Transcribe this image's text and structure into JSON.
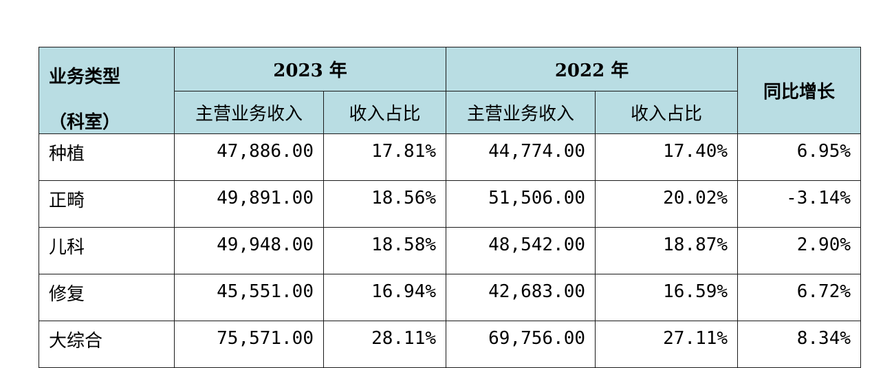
{
  "table": {
    "header": {
      "type_label": "业务类型",
      "type_sublabel": "（科室）",
      "year_2023": "2023 年",
      "year_2022": "2022 年",
      "growth": "同比增长",
      "revenue_2023": "主营业务收入",
      "share_2023": "收入占比",
      "revenue_2022": "主营业务收入",
      "share_2022": "收入占比"
    },
    "rows": [
      {
        "type": "种植",
        "rev_2023": "47,886.00",
        "share_2023": "17.81%",
        "rev_2022": "44,774.00",
        "share_2022": "17.40%",
        "growth": "6.95%"
      },
      {
        "type": "正畸",
        "rev_2023": "49,891.00",
        "share_2023": "18.56%",
        "rev_2022": "51,506.00",
        "share_2022": "20.02%",
        "growth": "-3.14%"
      },
      {
        "type": "儿科",
        "rev_2023": "49,948.00",
        "share_2023": "18.58%",
        "rev_2022": "48,542.00",
        "share_2022": "18.87%",
        "growth": "2.90%"
      },
      {
        "type": "修复",
        "rev_2023": "45,551.00",
        "share_2023": "16.94%",
        "rev_2022": "42,683.00",
        "share_2022": "16.59%",
        "growth": "6.72%"
      },
      {
        "type": "大综合",
        "rev_2023": "75,571.00",
        "share_2023": "28.11%",
        "rev_2022": "69,756.00",
        "share_2022": "27.11%",
        "growth": "8.34%"
      }
    ]
  },
  "colors": {
    "header_background": "#b9dde3",
    "border": "#1a1a1a"
  }
}
